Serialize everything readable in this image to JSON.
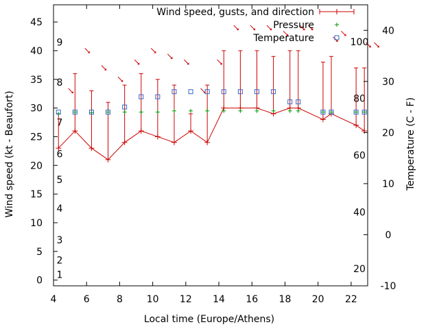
{
  "chart_data": {
    "type": "line",
    "xlabel": "Local time (Europe/Athens)",
    "ylabel": "Wind speed (kt - Beaufort)",
    "y2label": "Temperature (C - F)",
    "xlim": [
      4,
      23
    ],
    "ylim": [
      -1,
      48
    ],
    "y2lim": [
      -10,
      45
    ],
    "x_ticks": [
      "4",
      "6",
      "8",
      "10",
      "12",
      "14",
      "16",
      "18",
      "20",
      "22"
    ],
    "y_ticks": [
      "0",
      "5",
      "10",
      "15",
      "20",
      "25",
      "30",
      "35",
      "40",
      "45"
    ],
    "y2_ticks": [
      "-10",
      "0",
      "10",
      "20",
      "30",
      "40"
    ],
    "beaufort_labels": [
      "1",
      "2",
      "3",
      "4",
      "5",
      "6",
      "7",
      "8",
      "9"
    ],
    "fahrenheit_labels": [
      "20",
      "40",
      "60",
      "80",
      "100"
    ],
    "legend_position": "top-right",
    "colors": {
      "wind": "#cc0000",
      "pressure": "#009900",
      "temperature": "#3366cc",
      "direction": "#cc0000"
    },
    "series": [
      {
        "name": "Wind speed, gusts, and direction",
        "x": [
          4.3,
          5.3,
          6.3,
          7.3,
          8.3,
          9.3,
          10.3,
          11.3,
          12.3,
          13.3,
          14.3,
          15.3,
          16.3,
          17.3,
          18.3,
          18.8,
          20.3,
          20.8,
          22.3,
          22.8
        ],
        "values": [
          23,
          26,
          23,
          21,
          24,
          26,
          25,
          24,
          26,
          24,
          30,
          30,
          30,
          29,
          30,
          30,
          28,
          29,
          27,
          26
        ],
        "gusts": [
          29,
          36,
          33,
          31,
          34,
          36,
          35,
          34,
          29,
          34,
          40,
          40,
          40,
          39,
          40,
          40,
          38,
          39,
          37,
          37
        ],
        "direction_deg": [
          315,
          315,
          315,
          315,
          315,
          315,
          315,
          315,
          315,
          315,
          315,
          315,
          315,
          315,
          315,
          315,
          315,
          315,
          315,
          315
        ]
      },
      {
        "name": "Pressure",
        "x": [
          4.3,
          5.3,
          6.3,
          7.3,
          8.3,
          9.3,
          10.3,
          11.3,
          12.3,
          13.3,
          14.3,
          15.3,
          16.3,
          17.3,
          18.3,
          18.8,
          20.3,
          20.8,
          22.3,
          22.8
        ],
        "values": [
          29,
          29.3,
          29.2,
          29.3,
          29.3,
          29.3,
          29.3,
          29.5,
          29.5,
          29.5,
          29.5,
          29.5,
          29.5,
          29.5,
          29.5,
          29.5,
          29.3,
          29.3,
          29.3,
          29.3
        ]
      },
      {
        "name": "Temperature",
        "x": [
          4.3,
          5.3,
          6.3,
          7.3,
          8.3,
          9.3,
          10.3,
          11.3,
          12.3,
          13.3,
          14.3,
          15.3,
          16.3,
          17.3,
          18.3,
          18.8,
          20.3,
          20.8,
          22.3,
          22.8
        ],
        "values": [
          24,
          24,
          24,
          24,
          25,
          27,
          27,
          28,
          28,
          28,
          28,
          28,
          28,
          28,
          26,
          26,
          24,
          24,
          24,
          24
        ]
      }
    ]
  }
}
